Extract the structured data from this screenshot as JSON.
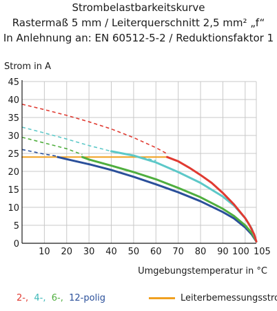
{
  "header": {
    "title": "Strombelastbarkeitskurve",
    "line2": "Rastermaß 5 mm / Leiterquerschnitt 2,5 mm² „f“",
    "line3": "In Anlehnung an: EN 60512-5-2 / Reduktionsfaktor 1"
  },
  "colors": {
    "s2": "#e03a31",
    "s4": "#5cc8c8",
    "s6": "#4fae3e",
    "s12": "#2a4f9a",
    "rated": "#f0a020",
    "grid": "#c8c8c8"
  },
  "chart_data": {
    "type": "line",
    "xlabel": "Umgebungstemperatur in °C",
    "ylabel": "Strom in A",
    "xlim": [
      0,
      105
    ],
    "ylim": [
      0,
      45
    ],
    "x_ticks": [
      "10",
      "20",
      "30",
      "40",
      "50",
      "60",
      "70",
      "80",
      "90",
      "100",
      "105"
    ],
    "y_ticks": [
      "0",
      "5",
      "10",
      "15",
      "20",
      "25",
      "30",
      "35",
      "40",
      "45"
    ],
    "x_tick_values": [
      10,
      20,
      30,
      40,
      50,
      60,
      70,
      80,
      90,
      100,
      105
    ],
    "y_tick_values": [
      0,
      5,
      10,
      15,
      20,
      25,
      30,
      35,
      40,
      45
    ],
    "grid": true,
    "series": [
      {
        "name": "2-",
        "color": "#e03a31",
        "dashed": {
          "x": [
            0,
            10,
            20,
            30,
            40,
            50,
            60,
            65
          ],
          "y": [
            38.7,
            37.2,
            35.6,
            33.8,
            31.8,
            29.4,
            26.6,
            24.9
          ]
        },
        "solid": {
          "x": [
            65,
            70,
            75,
            80,
            85,
            90,
            95,
            100,
            102,
            104,
            105
          ],
          "y": [
            24.0,
            22.8,
            21.0,
            19.0,
            16.8,
            14.0,
            10.8,
            7.0,
            5.0,
            2.5,
            0.5
          ]
        }
      },
      {
        "name": "4-",
        "color": "#5cc8c8",
        "dashed": {
          "x": [
            0,
            10,
            20,
            30,
            40,
            50,
            60
          ],
          "y": [
            32.3,
            30.7,
            29.0,
            27.2,
            25.6,
            24.4,
            23.0
          ]
        },
        "solid": {
          "x": [
            40,
            50,
            60,
            70,
            80,
            90,
            95,
            100,
            103,
            105
          ],
          "y": [
            25.6,
            24.4,
            22.5,
            19.8,
            16.8,
            13.0,
            10.5,
            7.0,
            4.0,
            0.5
          ]
        }
      },
      {
        "name": "6-",
        "color": "#4fae3e",
        "dashed": {
          "x": [
            0,
            10,
            20,
            27
          ],
          "y": [
            29.5,
            27.9,
            26.3,
            24.7
          ]
        },
        "solid": {
          "x": [
            27,
            30,
            40,
            50,
            60,
            70,
            80,
            90,
            95,
            100,
            103,
            105
          ],
          "y": [
            24.0,
            23.3,
            21.6,
            19.8,
            17.8,
            15.4,
            12.8,
            9.6,
            7.6,
            5.0,
            2.8,
            0.5
          ]
        }
      },
      {
        "name": "12-polig",
        "color": "#2a4f9a",
        "dashed": {
          "x": [
            0,
            10,
            16
          ],
          "y": [
            26.1,
            24.8,
            24.2
          ]
        },
        "solid": {
          "x": [
            16,
            20,
            30,
            40,
            50,
            60,
            70,
            80,
            90,
            95,
            100,
            103,
            105
          ],
          "y": [
            24.0,
            23.4,
            22.0,
            20.4,
            18.5,
            16.4,
            14.2,
            11.7,
            8.7,
            6.9,
            4.4,
            2.4,
            0.5
          ]
        }
      },
      {
        "name": "Leiterbemessungsstrom",
        "color": "#f0a020",
        "solid": {
          "x": [
            0,
            65
          ],
          "y": [
            24,
            24
          ]
        }
      }
    ]
  },
  "legend": {
    "item_2": "2-,",
    "item_4": "4-,",
    "item_6": "6-,",
    "item_12": "12-polig",
    "rated_label": "Leiterbemessungsstrom"
  }
}
